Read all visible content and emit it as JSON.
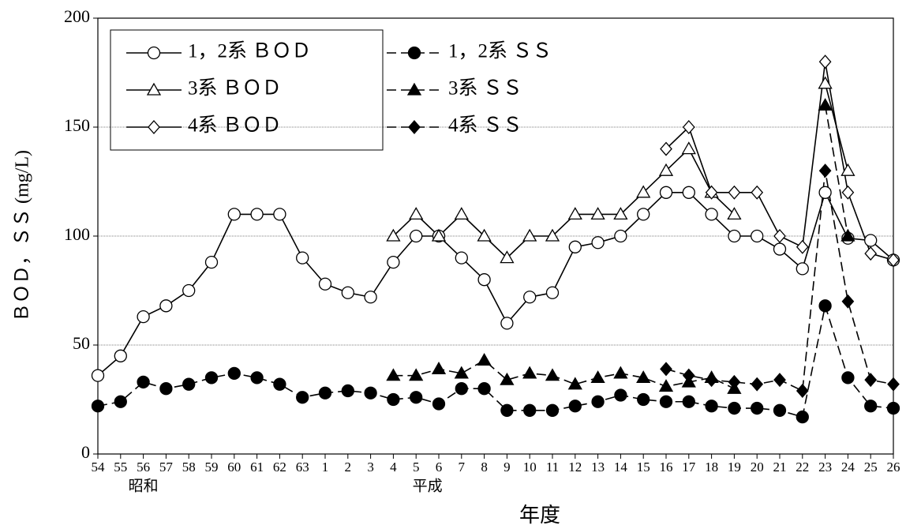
{
  "chart_data": {
    "type": "line",
    "categories": [
      "54",
      "55",
      "56",
      "57",
      "58",
      "59",
      "60",
      "61",
      "62",
      "63",
      "1",
      "2",
      "3",
      "4",
      "5",
      "6",
      "7",
      "8",
      "9",
      "10",
      "11",
      "12",
      "13",
      "14",
      "15",
      "16",
      "17",
      "18",
      "19",
      "20",
      "21",
      "22",
      "23",
      "24",
      "25",
      "26"
    ],
    "era_labels": [
      {
        "text": "昭和",
        "category": 2
      },
      {
        "text": "平成",
        "category": 14.5
      }
    ],
    "x_label": "年度",
    "y_label": "ＢＯＤ，ＳＳ (mg/L)",
    "ylim": [
      0,
      200
    ],
    "yticks": [
      0,
      50,
      100,
      150,
      200
    ],
    "grid": true,
    "series": [
      {
        "name": "1，2系 ＢＯＤ",
        "color": "#000000",
        "marker": "circle",
        "filled": false,
        "dashed": false,
        "values": [
          36,
          45,
          63,
          68,
          75,
          88,
          110,
          110,
          110,
          90,
          78,
          74,
          72,
          88,
          100,
          100,
          90,
          80,
          60,
          72,
          74,
          95,
          97,
          100,
          110,
          120,
          120,
          110,
          100,
          100,
          94,
          85,
          120,
          99,
          98,
          89
        ]
      },
      {
        "name": "1，2系 ＳＳ",
        "color": "#000000",
        "marker": "circle",
        "filled": true,
        "dashed": true,
        "values": [
          22,
          24,
          33,
          30,
          32,
          35,
          37,
          35,
          32,
          26,
          28,
          29,
          28,
          25,
          26,
          23,
          30,
          30,
          20,
          20,
          20,
          22,
          24,
          27,
          25,
          24,
          24,
          22,
          21,
          21,
          20,
          17,
          68,
          35,
          22,
          21
        ]
      },
      {
        "name": "3系 ＢＯＤ",
        "color": "#000000",
        "marker": "triangle",
        "filled": false,
        "dashed": false,
        "values": [
          null,
          null,
          null,
          null,
          null,
          null,
          null,
          null,
          null,
          null,
          null,
          null,
          null,
          100,
          110,
          100,
          110,
          100,
          90,
          100,
          100,
          110,
          110,
          110,
          120,
          130,
          140,
          120,
          110,
          null,
          null,
          null,
          170,
          130,
          null,
          null
        ]
      },
      {
        "name": "3系 ＳＳ",
        "color": "#000000",
        "marker": "triangle",
        "filled": true,
        "dashed": true,
        "values": [
          null,
          null,
          null,
          null,
          null,
          null,
          null,
          null,
          null,
          null,
          null,
          null,
          null,
          36,
          36,
          39,
          37,
          43,
          34,
          37,
          36,
          32,
          35,
          37,
          35,
          31,
          33,
          35,
          30,
          null,
          null,
          null,
          160,
          100,
          null,
          null
        ]
      },
      {
        "name": "4系 ＢＯＤ",
        "color": "#000000",
        "marker": "diamond",
        "filled": false,
        "dashed": false,
        "values": [
          null,
          null,
          null,
          null,
          null,
          null,
          null,
          null,
          null,
          null,
          null,
          null,
          null,
          null,
          null,
          null,
          null,
          null,
          null,
          null,
          null,
          null,
          null,
          null,
          null,
          140,
          150,
          120,
          120,
          120,
          100,
          95,
          180,
          120,
          92,
          89
        ]
      },
      {
        "name": "4系 ＳＳ",
        "color": "#000000",
        "marker": "diamond",
        "filled": true,
        "dashed": true,
        "values": [
          null,
          null,
          null,
          null,
          null,
          null,
          null,
          null,
          null,
          null,
          null,
          null,
          null,
          null,
          null,
          null,
          null,
          null,
          null,
          null,
          null,
          null,
          null,
          null,
          null,
          39,
          36,
          34,
          33,
          32,
          34,
          29,
          130,
          70,
          34,
          32
        ]
      }
    ]
  }
}
